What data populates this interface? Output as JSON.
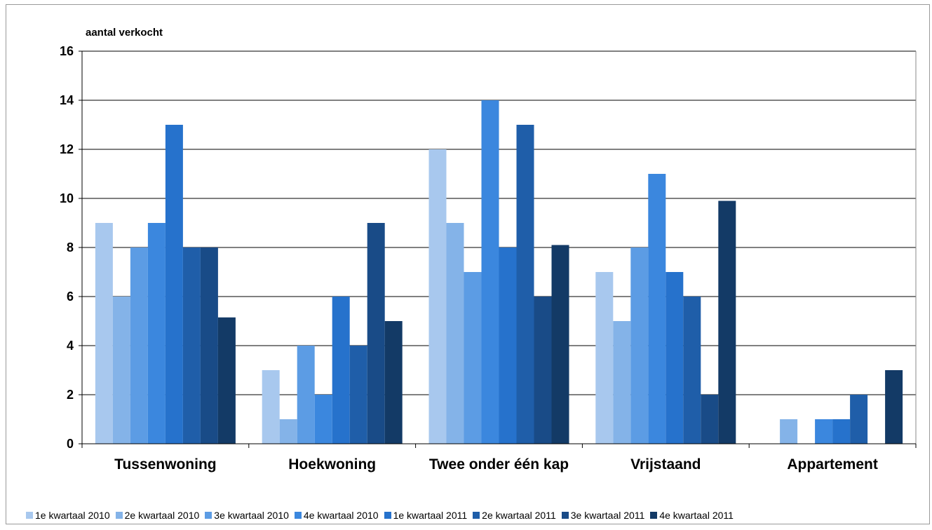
{
  "chart_data": {
    "type": "bar",
    "title": "",
    "ylabel": "aantal verkocht",
    "xlabel": "",
    "ylim": [
      0,
      16
    ],
    "yticks": [
      0,
      2,
      4,
      6,
      8,
      10,
      12,
      14,
      16
    ],
    "grid": true,
    "legend_position": "bottom",
    "categories": [
      "Tussenwoning",
      "Hoekwoning",
      "Twee onder één kap",
      "Vrijstaand",
      "Appartement"
    ],
    "series": [
      {
        "name": "1e kwartaal 2010",
        "color": "#a8c8ee",
        "values": [
          9,
          3,
          12,
          7,
          0
        ]
      },
      {
        "name": "2e kwartaal 2010",
        "color": "#84b3e8",
        "values": [
          6,
          1,
          9,
          5,
          1
        ]
      },
      {
        "name": "3e kwartaal 2010",
        "color": "#5c9ce4",
        "values": [
          8,
          4,
          7,
          8,
          0
        ]
      },
      {
        "name": "4e kwartaal 2010",
        "color": "#3b87de",
        "values": [
          9,
          2,
          14,
          11,
          1
        ]
      },
      {
        "name": "1e kwartaal 2011",
        "color": "#2672cc",
        "values": [
          13,
          6,
          8,
          7,
          1
        ]
      },
      {
        "name": "2e kwartaal 2011",
        "color": "#1f5ea9",
        "values": [
          8,
          4,
          13,
          6,
          2
        ]
      },
      {
        "name": "3e kwartaal 2011",
        "color": "#194b87",
        "values": [
          8,
          9,
          6,
          2,
          0
        ]
      },
      {
        "name": "4e kwartaal 2011",
        "color": "#133a66",
        "values": [
          5.15,
          5,
          8.1,
          9.9,
          3
        ]
      }
    ]
  }
}
